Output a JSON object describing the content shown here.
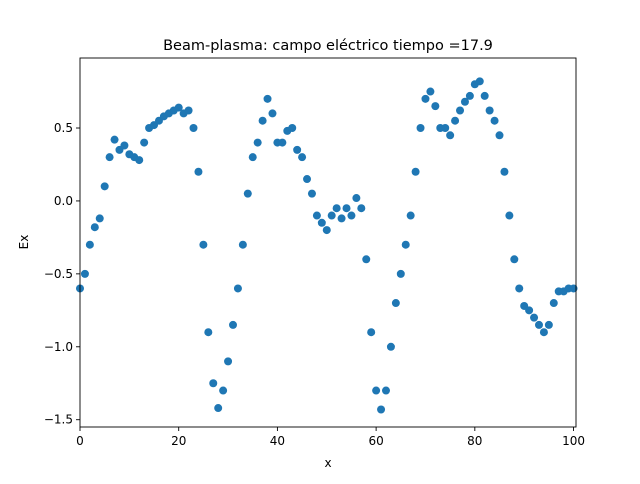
{
  "chart_data": {
    "type": "scatter",
    "title": "Beam-plasma: campo eléctrico  tiempo =17.9",
    "xlabel": "x",
    "ylabel": "Ex",
    "xlim": [
      0,
      100.5
    ],
    "ylim": [
      -1.55,
      0.98
    ],
    "grid": false,
    "marker_color": "#1f77b4",
    "xticks": [
      {
        "value": 0,
        "label": "0"
      },
      {
        "value": 20,
        "label": "20"
      },
      {
        "value": 40,
        "label": "40"
      },
      {
        "value": 60,
        "label": "60"
      },
      {
        "value": 80,
        "label": "80"
      },
      {
        "value": 100,
        "label": "100"
      }
    ],
    "yticks": [
      {
        "value": -1.5,
        "label": "−1.5"
      },
      {
        "value": -1.0,
        "label": "−1.0"
      },
      {
        "value": -0.5,
        "label": "−0.5"
      },
      {
        "value": 0.0,
        "label": "0.0"
      },
      {
        "value": 0.5,
        "label": "0.5"
      }
    ],
    "series": [
      {
        "x": [
          0,
          1,
          2,
          3,
          4,
          5,
          6,
          7,
          8,
          9,
          10,
          11,
          12,
          13,
          14,
          15,
          16,
          17,
          18,
          19,
          20,
          21,
          22,
          23,
          24,
          25,
          26,
          27,
          28,
          29,
          30,
          31,
          32,
          33,
          34,
          35,
          36,
          37,
          38,
          39,
          40,
          41,
          42,
          43,
          44,
          45,
          46,
          47,
          48,
          49,
          50,
          51,
          52,
          53,
          54,
          55,
          56,
          57,
          58,
          59,
          60,
          61,
          62,
          63,
          64,
          65,
          66,
          67,
          68,
          69,
          70,
          71,
          72,
          73,
          74,
          75,
          76,
          77,
          78,
          79,
          80,
          81,
          82,
          83,
          84,
          85,
          86,
          87,
          88,
          89,
          90,
          91,
          92,
          93,
          94,
          95,
          96,
          97,
          98,
          99,
          100
        ],
        "y": [
          -0.6,
          -0.5,
          -0.3,
          -0.18,
          -0.12,
          0.1,
          0.3,
          0.42,
          0.35,
          0.38,
          0.32,
          0.3,
          0.28,
          0.4,
          0.5,
          0.52,
          0.55,
          0.58,
          0.6,
          0.62,
          0.64,
          0.6,
          0.62,
          0.5,
          0.2,
          -0.3,
          -0.9,
          -1.25,
          -1.42,
          -1.3,
          -1.1,
          -0.85,
          -0.6,
          -0.3,
          0.05,
          0.3,
          0.4,
          0.55,
          0.7,
          0.6,
          0.4,
          0.4,
          0.48,
          0.5,
          0.35,
          0.3,
          0.15,
          0.05,
          -0.1,
          -0.15,
          -0.2,
          -0.1,
          -0.05,
          -0.12,
          -0.05,
          -0.1,
          0.02,
          -0.05,
          -0.4,
          -0.9,
          -1.3,
          -1.43,
          -1.3,
          -1.0,
          -0.7,
          -0.5,
          -0.3,
          -0.1,
          0.2,
          0.5,
          0.7,
          0.75,
          0.65,
          0.5,
          0.5,
          0.45,
          0.55,
          0.62,
          0.68,
          0.72,
          0.8,
          0.82,
          0.72,
          0.62,
          0.55,
          0.45,
          0.2,
          -0.1,
          -0.4,
          -0.6,
          -0.72,
          -0.75,
          -0.8,
          -0.85,
          -0.9,
          -0.85,
          -0.7,
          -0.62,
          -0.62,
          -0.6,
          -0.6
        ]
      }
    ]
  }
}
